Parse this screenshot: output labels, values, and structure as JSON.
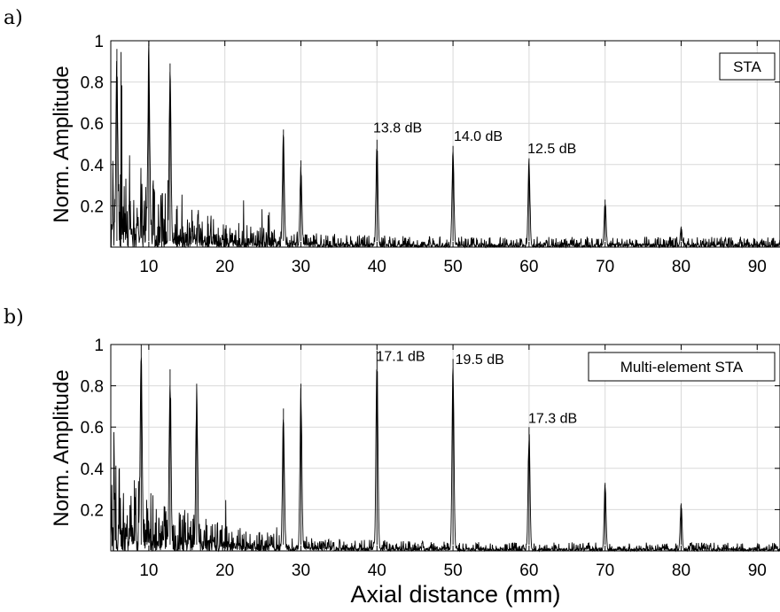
{
  "chart_data": [
    {
      "type": "line",
      "panel_label": "a)",
      "legend": "STA",
      "ylabel": "Norm. Amplitude",
      "xlabel": "",
      "xlim": [
        5,
        93
      ],
      "ylim": [
        0,
        1
      ],
      "xticks": [
        10,
        20,
        30,
        40,
        50,
        60,
        70,
        80,
        90
      ],
      "yticks": [
        0.2,
        0.4,
        0.6,
        0.8,
        1
      ],
      "grid": true,
      "legend_position": "top-right",
      "noise": {
        "near_amplitude": 0.55,
        "decay_mm": 8,
        "floor": 0.05,
        "near_field_end": 30
      },
      "peaks": [
        {
          "x": 5.8,
          "y": 0.96
        },
        {
          "x": 10,
          "y": 1.0
        },
        {
          "x": 12.8,
          "y": 0.89
        },
        {
          "x": 27.7,
          "y": 0.57
        },
        {
          "x": 30,
          "y": 0.42
        },
        {
          "x": 40,
          "y": 0.52
        },
        {
          "x": 50,
          "y": 0.49
        },
        {
          "x": 60,
          "y": 0.43
        },
        {
          "x": 70,
          "y": 0.23
        },
        {
          "x": 80,
          "y": 0.1
        }
      ],
      "annotations": [
        {
          "text": "13.8 dB",
          "x": 39.5,
          "y": 0.555
        },
        {
          "text": "14.0 dB",
          "x": 50.1,
          "y": 0.515
        },
        {
          "text": "12.5 dB",
          "x": 59.8,
          "y": 0.455
        }
      ]
    },
    {
      "type": "line",
      "panel_label": "b)",
      "legend": "Multi-element STA",
      "ylabel": "Norm. Amplitude",
      "xlabel": "Axial distance (mm)",
      "xlim": [
        5,
        93
      ],
      "ylim": [
        0,
        1
      ],
      "xticks": [
        10,
        20,
        30,
        40,
        50,
        60,
        70,
        80,
        90
      ],
      "yticks": [
        0.2,
        0.4,
        0.6,
        0.8,
        1
      ],
      "grid": true,
      "legend_position": "top-right",
      "noise": {
        "near_amplitude": 0.45,
        "decay_mm": 10,
        "floor": 0.04,
        "near_field_end": 32
      },
      "peaks": [
        {
          "x": 9,
          "y": 1.0
        },
        {
          "x": 12.8,
          "y": 0.88
        },
        {
          "x": 16.3,
          "y": 0.81
        },
        {
          "x": 27.7,
          "y": 0.69
        },
        {
          "x": 30,
          "y": 0.81
        },
        {
          "x": 40,
          "y": 0.97
        },
        {
          "x": 50,
          "y": 0.93
        },
        {
          "x": 60,
          "y": 0.6
        },
        {
          "x": 70,
          "y": 0.33
        },
        {
          "x": 80,
          "y": 0.23
        }
      ],
      "annotations": [
        {
          "text": "17.1 dB",
          "x": 39.9,
          "y": 0.92
        },
        {
          "text": "19.5 dB",
          "x": 50.3,
          "y": 0.905
        },
        {
          "text": "17.3 dB",
          "x": 59.9,
          "y": 0.62
        }
      ]
    }
  ]
}
